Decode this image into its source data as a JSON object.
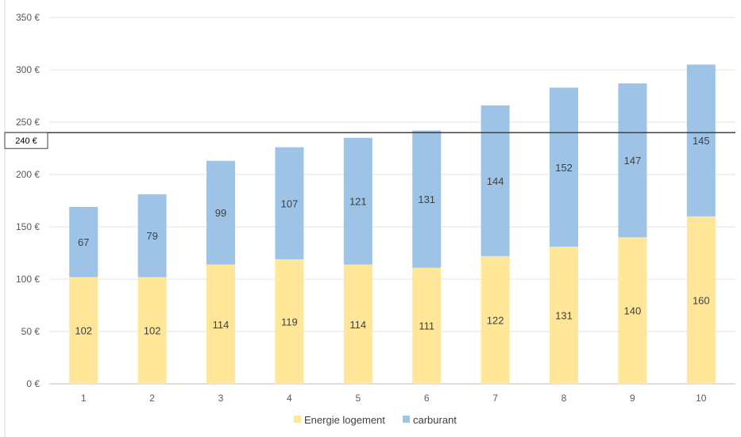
{
  "chart_data": {
    "type": "bar",
    "stacked": true,
    "categories": [
      "1",
      "2",
      "3",
      "4",
      "5",
      "6",
      "7",
      "8",
      "9",
      "10"
    ],
    "series": [
      {
        "name": "Energie logement",
        "color": "#FFE699",
        "values": [
          102,
          102,
          114,
          119,
          114,
          111,
          122,
          131,
          140,
          160
        ]
      },
      {
        "name": "carburant",
        "color": "#9DC3E6",
        "values": [
          67,
          79,
          99,
          107,
          121,
          131,
          144,
          152,
          147,
          145
        ]
      }
    ],
    "ylim": [
      0,
      350
    ],
    "yticks": [
      0,
      50,
      100,
      150,
      200,
      250,
      300,
      350
    ],
    "ytick_labels": [
      "0 €",
      "50 €",
      "100 €",
      "150 €",
      "200 €",
      "250 €",
      "300 €",
      "350 €"
    ],
    "reference_line": {
      "value": 240,
      "label": "240 €",
      "color": "#404040"
    },
    "grid": true,
    "legend_position": "bottom"
  }
}
